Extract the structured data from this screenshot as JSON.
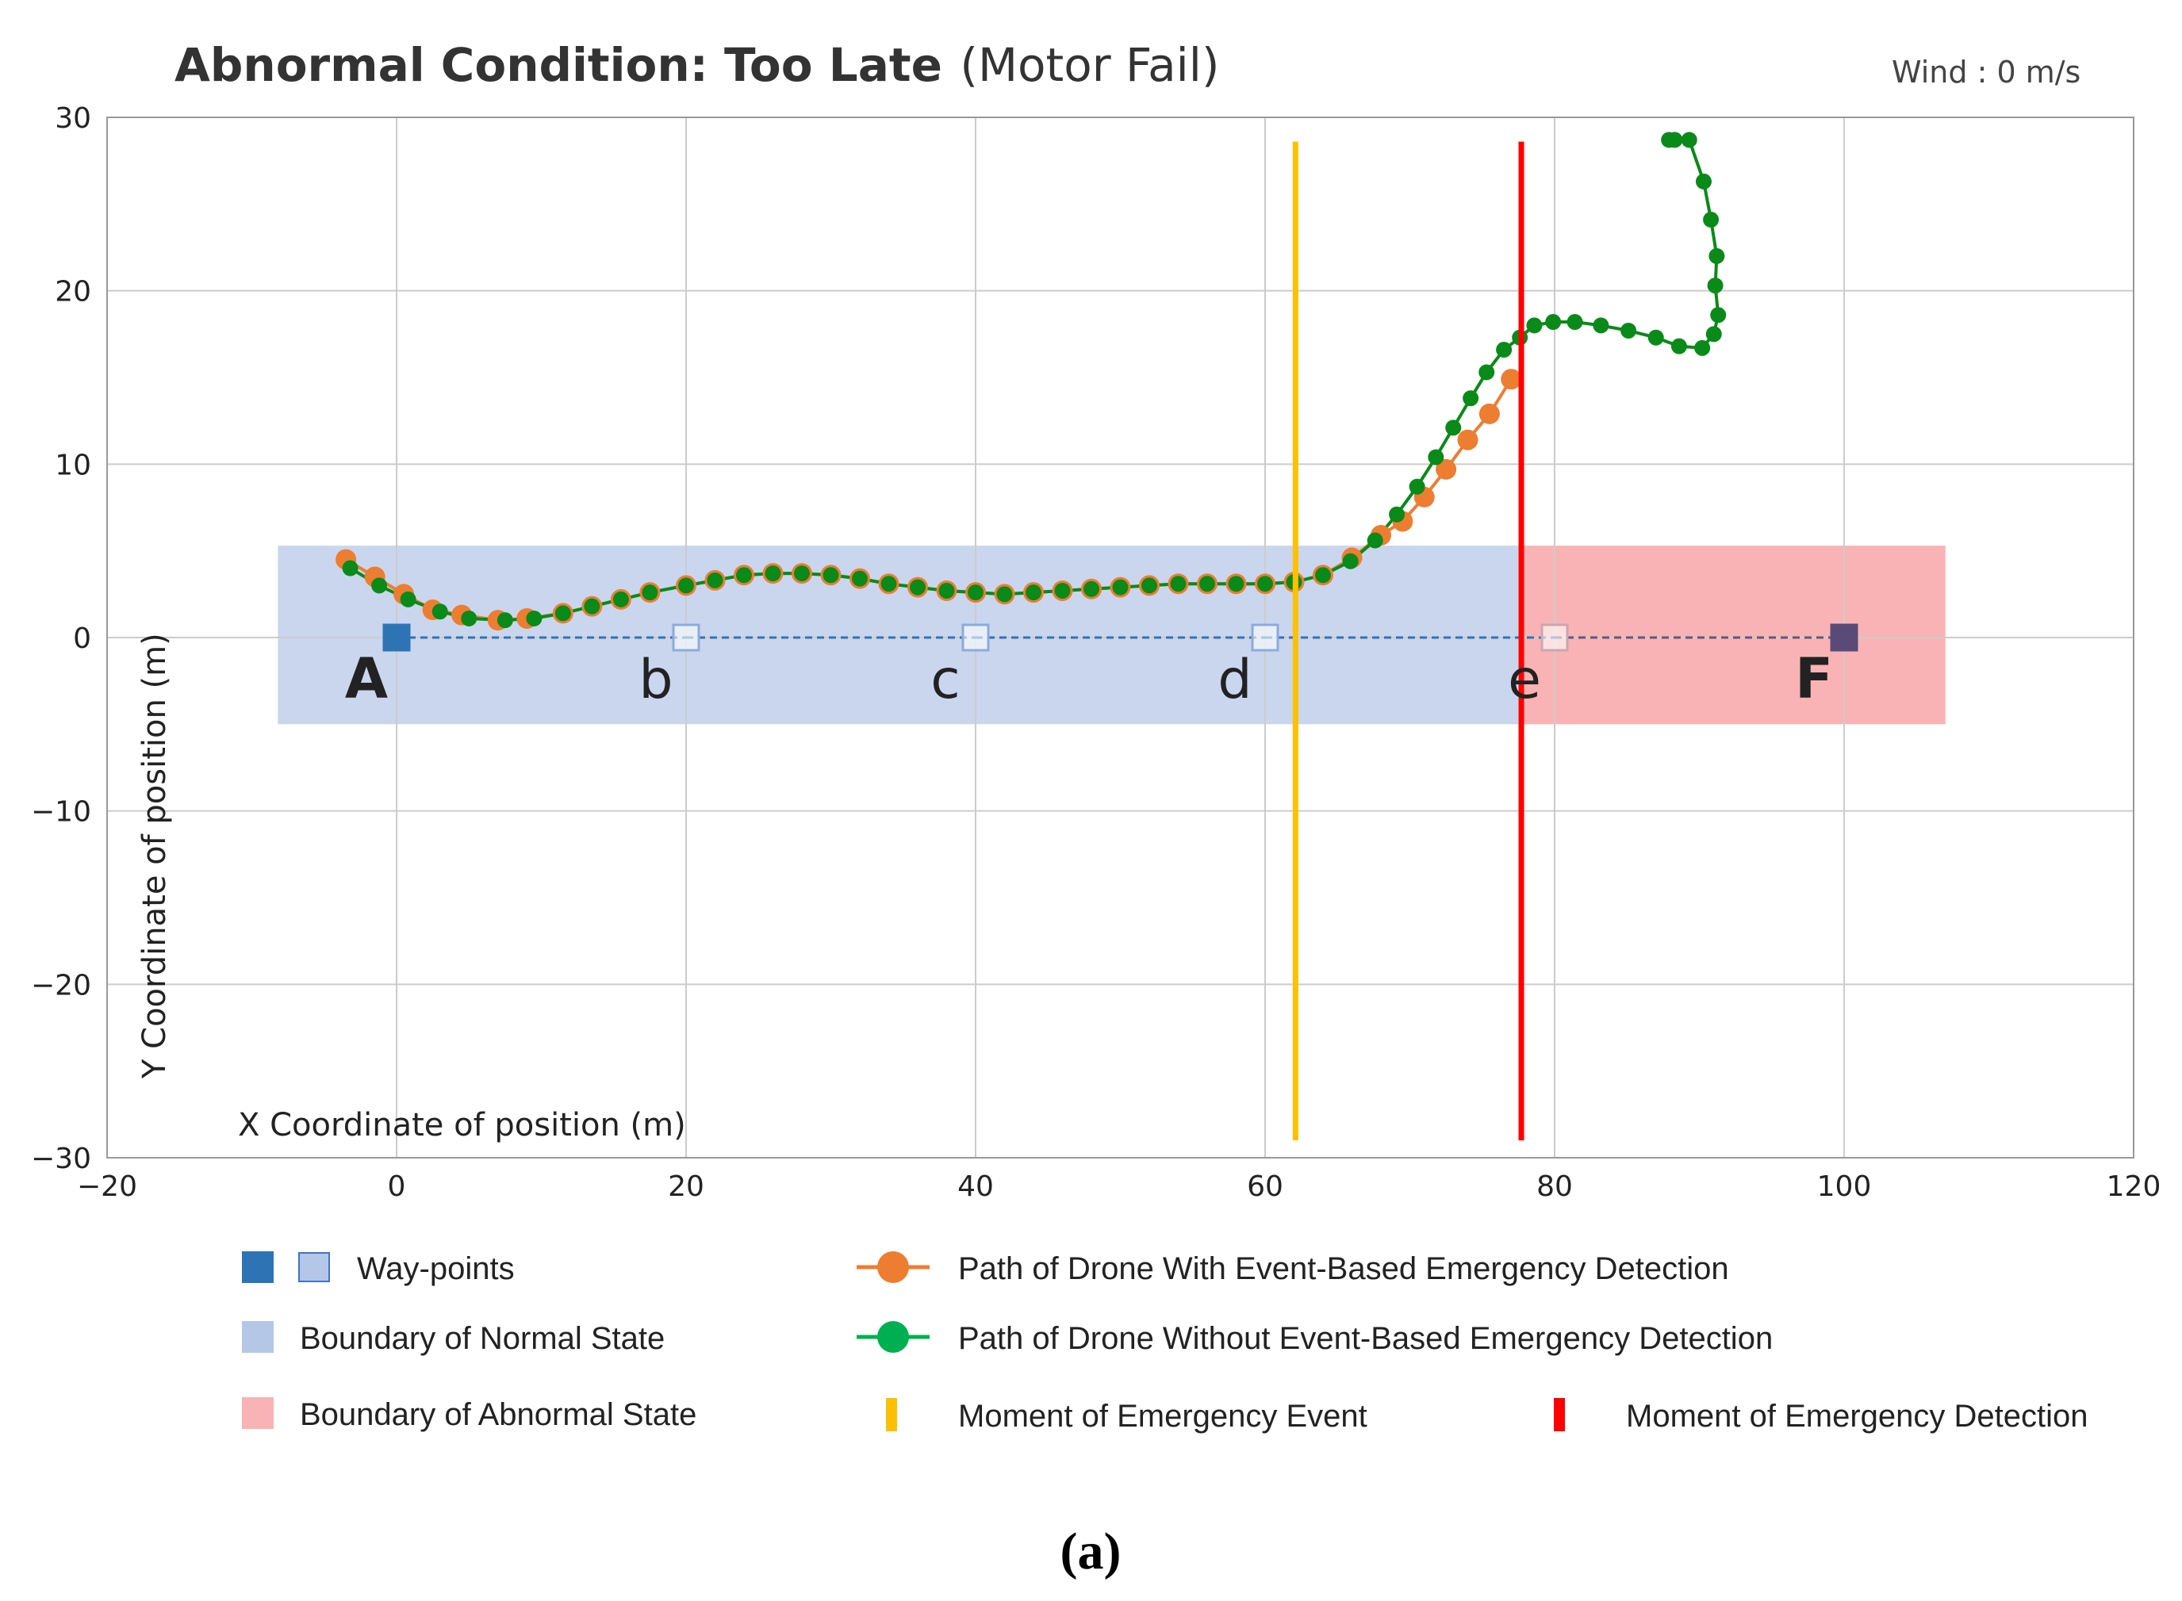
{
  "chart_data": {
    "type": "line",
    "title_bold": "Abnormal Condition: Too Late",
    "title_rest": "(Motor Fail)",
    "annotation": "Wind : 0 m/s",
    "xlabel": "X Coordinate of position (m)",
    "ylabel": "Y Coordinate of position (m)",
    "xlim": [
      -20,
      120
    ],
    "ylim": [
      -30,
      30
    ],
    "xticks": [
      -20,
      0,
      20,
      40,
      60,
      80,
      100,
      120
    ],
    "yticks": [
      -30,
      -20,
      -10,
      0,
      10,
      20,
      30
    ],
    "xtick_labels": [
      "−20",
      "0",
      "20",
      "40",
      "60",
      "80",
      "100",
      "120"
    ],
    "ytick_labels": [
      "−30",
      "−20",
      "−10",
      "0",
      "10",
      "20",
      "30"
    ],
    "grid": true,
    "regions": [
      {
        "name": "Boundary of Normal State",
        "x": [
          -8.2,
          77.5
        ],
        "y": [
          -5,
          5.3
        ],
        "color": "#c9d6ee"
      },
      {
        "name": "Boundary of Abnormal State",
        "x": [
          77.5,
          107
        ],
        "y": [
          -5,
          5.3
        ],
        "color": "#f9b3b5"
      }
    ],
    "waypoints": [
      {
        "label": "A",
        "x": 0,
        "y": 0,
        "filled": true,
        "color": "#2e74b5"
      },
      {
        "label": "b",
        "x": 20,
        "y": 0,
        "filled": false,
        "color": "#8eaadb"
      },
      {
        "label": "c",
        "x": 40,
        "y": 0,
        "filled": false,
        "color": "#8eaadb"
      },
      {
        "label": "d",
        "x": 60,
        "y": 0,
        "filled": false,
        "color": "#8eaadb"
      },
      {
        "label": "e",
        "x": 80,
        "y": 0,
        "filled": false,
        "color": "#c9a7b0"
      },
      {
        "label": "F",
        "x": 100,
        "y": 0,
        "filled": true,
        "color": "#5a4a78"
      }
    ],
    "events": [
      {
        "name": "Moment of Emergency Event",
        "x": 62.1,
        "y": [
          -29,
          28.6
        ],
        "color": "#ffc000"
      },
      {
        "name": "Moment of Emergency Detection",
        "x": 77.7,
        "y": [
          -29,
          28.6
        ],
        "color": "#ff0000"
      }
    ],
    "series": [
      {
        "name": "Path of Drone With Event-Based Emergency Detection",
        "color": "#ed7d31",
        "x": [
          -3.5,
          -1.5,
          0.5,
          2.5,
          4.5,
          7,
          9,
          11.5,
          13.5,
          15.5,
          17.5,
          20,
          22,
          24,
          26,
          28,
          30,
          32,
          34,
          36,
          38,
          40,
          42,
          44,
          46,
          48,
          50,
          52,
          54,
          56,
          58,
          60,
          62,
          64,
          66,
          68,
          69.5,
          71,
          72.5,
          74,
          75.5,
          77
        ],
        "y": [
          4.5,
          3.5,
          2.5,
          1.6,
          1.3,
          1.0,
          1.1,
          1.4,
          1.8,
          2.2,
          2.6,
          3.0,
          3.3,
          3.6,
          3.7,
          3.7,
          3.6,
          3.4,
          3.1,
          2.9,
          2.7,
          2.6,
          2.5,
          2.6,
          2.7,
          2.8,
          2.9,
          3.0,
          3.1,
          3.1,
          3.1,
          3.1,
          3.2,
          3.6,
          4.6,
          5.9,
          6.7,
          8.1,
          9.7,
          11.4,
          12.9,
          14.9
        ]
      },
      {
        "name": "Path of Drone Without Event-Based Emergency Detection",
        "color": "#0a8a18",
        "x": [
          -3.2,
          -1.2,
          0.8,
          3,
          5,
          7.5,
          9.5,
          11.5,
          13.5,
          15.5,
          17.5,
          20,
          22,
          24,
          26,
          28,
          30,
          32,
          34,
          36,
          38,
          40,
          42,
          44,
          46,
          48,
          50,
          52,
          54,
          56,
          58,
          60,
          62,
          64,
          65.9,
          67.6,
          69.1,
          70.5,
          71.8,
          73,
          74.2,
          75.3,
          76.5,
          77.6,
          78.6,
          79.9,
          81.4,
          83.2,
          85.1,
          87,
          88.6,
          90.2,
          91,
          91.3,
          91.1,
          91.2,
          90.8,
          90.3,
          89.3,
          88.3,
          87.9
        ],
        "y": [
          4.0,
          3.0,
          2.2,
          1.5,
          1.1,
          1.0,
          1.1,
          1.4,
          1.8,
          2.2,
          2.6,
          3.0,
          3.3,
          3.6,
          3.7,
          3.7,
          3.6,
          3.4,
          3.1,
          2.9,
          2.7,
          2.6,
          2.5,
          2.6,
          2.7,
          2.8,
          2.9,
          3.0,
          3.1,
          3.1,
          3.1,
          3.1,
          3.2,
          3.6,
          4.4,
          5.6,
          7.1,
          8.7,
          10.4,
          12.1,
          13.8,
          15.3,
          16.6,
          17.3,
          18.0,
          18.2,
          18.2,
          18.0,
          17.7,
          17.3,
          16.8,
          16.7,
          17.5,
          18.6,
          20.3,
          22.0,
          24.1,
          26.3,
          28.7,
          28.7,
          28.7
        ]
      }
    ],
    "legend": {
      "waypoints": "Way-points",
      "normal": "Boundary of Normal State",
      "abnormal": "Boundary of Abnormal State",
      "with_detection": "Path of Drone With Event-Based Emergency Detection",
      "without_detection": "Path of Drone Without Event-Based Emergency Detection",
      "event": "Moment of Emergency Event",
      "detection": "Moment of Emergency Detection"
    },
    "caption": "(a)"
  }
}
